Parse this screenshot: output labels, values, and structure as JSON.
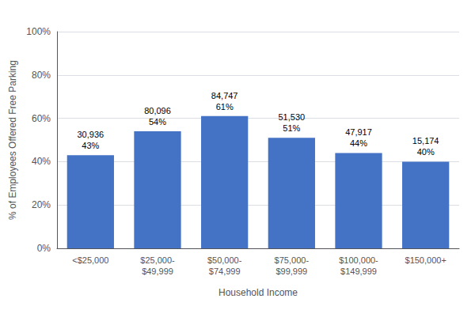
{
  "chart_data": {
    "type": "bar",
    "categories": [
      "<$25,000",
      "$25,000-\n$49,999",
      "$50,000-\n$74,999",
      "$75,000-\n$99,999",
      "$100,000-\n$149,999",
      "$150,000+"
    ],
    "values": [
      43,
      54,
      61,
      51,
      44,
      40
    ],
    "value_labels": [
      "43%",
      "54%",
      "61%",
      "51%",
      "44%",
      "40%"
    ],
    "counts": [
      "30,936",
      "80,096",
      "84,747",
      "51,530",
      "47,917",
      "15,174"
    ],
    "data_labels": true,
    "color": "#4472C4",
    "xlabel": "Household Income",
    "ylabel": "% of Employees Offered Free Parking",
    "ylim": [
      0,
      100
    ],
    "yticks": [
      {
        "value": 0,
        "label": "0%"
      },
      {
        "value": 20,
        "label": "20%"
      },
      {
        "value": 40,
        "label": "40%"
      },
      {
        "value": 60,
        "label": "60%"
      },
      {
        "value": 80,
        "label": "80%"
      },
      {
        "value": 100,
        "label": "100%"
      }
    ],
    "grid": true
  }
}
